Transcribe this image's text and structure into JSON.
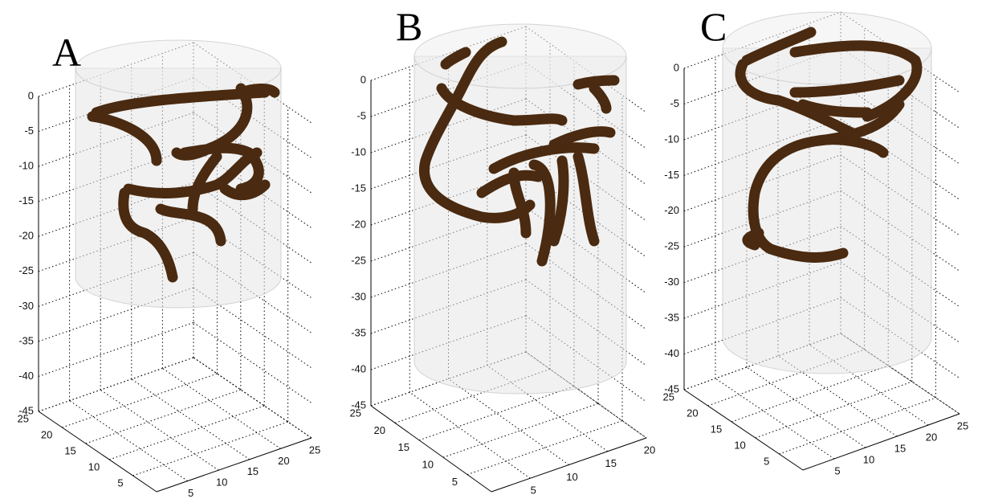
{
  "panels": [
    {
      "label": "A",
      "zticks": [
        0,
        -5,
        -10,
        -15,
        -20,
        -25,
        -30,
        -35,
        -40,
        -45
      ],
      "yticks": [
        25,
        20,
        15,
        10,
        5
      ],
      "xticks": [
        5,
        10,
        15,
        20,
        25
      ]
    },
    {
      "label": "B",
      "zticks": [
        0,
        -5,
        -10,
        -15,
        -20,
        -25,
        -30,
        -35,
        -40,
        -45
      ],
      "yticks": [
        25,
        20,
        15,
        10,
        5
      ],
      "xticks": [
        5,
        10,
        15,
        20
      ]
    },
    {
      "label": "C",
      "zticks": [
        0,
        -5,
        -10,
        -15,
        -20,
        -25,
        -30,
        -35,
        -40,
        -45
      ],
      "yticks": [
        25,
        20,
        15,
        10,
        5
      ],
      "xticks": [
        5,
        10,
        15,
        20,
        25
      ]
    }
  ]
}
